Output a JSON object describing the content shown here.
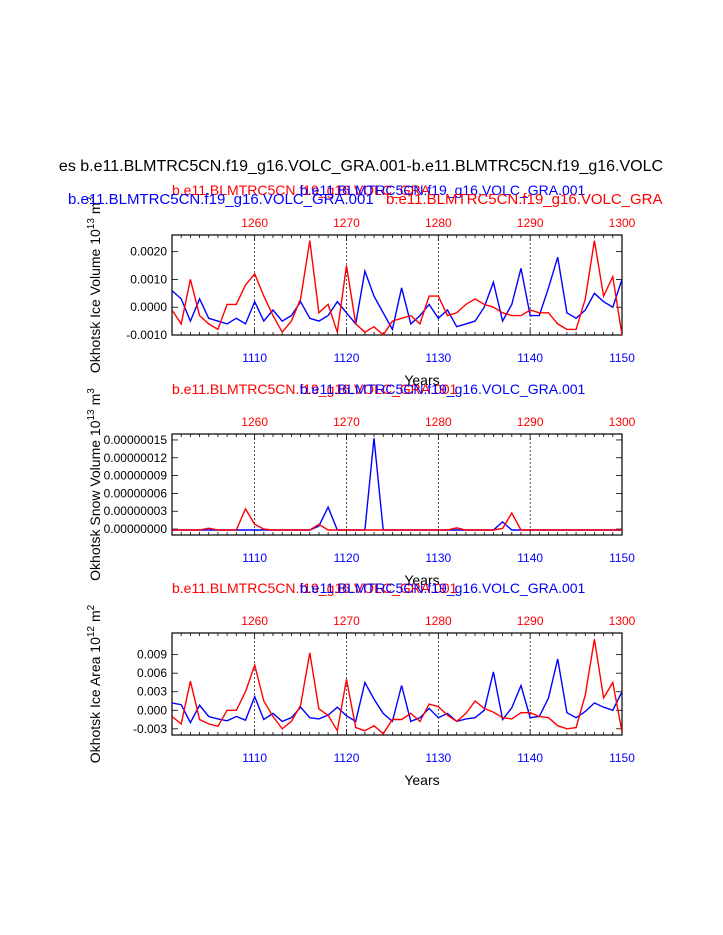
{
  "figure": {
    "title": "es b.e11.BLMTRC5CN.f19_g16.VOLC_GRA.001-b.e11.BLMTRC5CN.f19_g16.VOLC",
    "colors": {
      "case1": "#0000ff",
      "case2": "#ff0000",
      "axis": "#000000",
      "grid": "#000000"
    }
  },
  "chart_data": [
    {
      "type": "line",
      "case1_label": "b.e11.BLMTRC5CN.f19_g16.VOLC_GRA.001",
      "case2_label": "b.e11.BLMTRC5CN.f19_g16.VOLC_GRA",
      "ylabel": "Okhotsk Ice Volume 10",
      "ylabel_exp": "13",
      "ylabel_unit": "m",
      "ylabel_unit_exp": "3",
      "xlabel": "Years",
      "bottom_xlim": [
        1101,
        1150
      ],
      "top_xlim": [
        1251,
        1300
      ],
      "bottom_ticks": [
        1110,
        1120,
        1130,
        1140,
        1150
      ],
      "top_ticks": [
        1260,
        1270,
        1280,
        1290,
        1300
      ],
      "ylim": [
        -0.001,
        0.0026
      ],
      "yticks": [
        0.002,
        0.001,
        0.0,
        -0.001
      ],
      "ytick_labels": [
        "0.0020",
        "0.0010",
        "0.0000",
        "-0.0010"
      ],
      "series": [
        {
          "name": "b.e11.BLMTRC5CN.f19_g16.VOLC_GRA.001",
          "axis": "bottom",
          "values": [
            0.0006,
            0.0003,
            -0.0005,
            0.0003,
            -0.0004,
            -0.0005,
            -0.0006,
            -0.0004,
            -0.0006,
            0.0002,
            -0.0005,
            -0.0001,
            -0.0005,
            -0.0003,
            0.0002,
            -0.0004,
            -0.0005,
            -0.0003,
            0.0002,
            -0.0002,
            -0.0006,
            0.0013,
            0.0004,
            -0.0002,
            -0.0008,
            0.0007,
            -0.0006,
            -0.0003,
            0.0001,
            -0.0004,
            -0.0001,
            -0.0007,
            -0.0006,
            -0.0005,
            0.0,
            0.0009,
            -0.0005,
            0.0001,
            0.0014,
            -0.0003,
            -0.0003,
            0.0007,
            0.0018,
            -0.0002,
            -0.0004,
            -0.0001,
            0.0005,
            0.0002,
            0.0,
            0.001
          ]
        },
        {
          "name": "b.e11.BLMTRC5CN.f19_g16.VOLC_GRA",
          "axis": "top",
          "values": [
            -0.0001,
            -0.0006,
            0.001,
            -0.0003,
            -0.0006,
            -0.0008,
            0.0001,
            0.0001,
            0.0008,
            0.0012,
            0.0004,
            -0.0003,
            -0.0009,
            -0.0005,
            0.0003,
            0.0024,
            -0.0002,
            0.0001,
            -0.0009,
            0.0015,
            -0.0006,
            -0.0009,
            -0.0007,
            -0.001,
            -0.0005,
            -0.0004,
            -0.0003,
            -0.0006,
            0.0004,
            0.0004,
            -0.0003,
            -0.0002,
            0.0001,
            0.0003,
            0.0001,
            0.0,
            -0.0002,
            -0.0003,
            -0.0003,
            -0.0001,
            -0.0002,
            -0.0002,
            -0.0006,
            -0.0008,
            -0.0008,
            0.0003,
            0.0024,
            0.0004,
            0.0011,
            -0.001
          ]
        }
      ]
    },
    {
      "type": "line",
      "case1_label": "b.e11.BLMTRC5CN.f19_g16.VOLC_GRA.001",
      "case2_label": "b.e11.BLMTRC5CN.f19_g16.VOLC_GRA.001",
      "ylabel": "Okhotsk Snow Volume 10",
      "ylabel_exp": "13",
      "ylabel_unit": "m",
      "ylabel_unit_exp": "3",
      "xlabel": "Years",
      "bottom_xlim": [
        1101,
        1150
      ],
      "top_xlim": [
        1251,
        1300
      ],
      "bottom_ticks": [
        1110,
        1120,
        1130,
        1140,
        1150
      ],
      "top_ticks": [
        1260,
        1270,
        1280,
        1290,
        1300
      ],
      "ylim": [
        -1e-08,
        1.6e-07
      ],
      "yticks": [
        1.5e-07,
        1.2e-07,
        9e-08,
        6e-08,
        3e-08,
        0.0
      ],
      "ytick_labels": [
        "0.00000015",
        "0.00000012",
        "0.00000009",
        "0.00000006",
        "0.00000003",
        "0.00000000"
      ],
      "series": [
        {
          "name": "b.e11.BLMTRC5CN.f19_g16.VOLC_GRA.001",
          "axis": "bottom",
          "values": [
            -1.5e-09,
            -1.5e-09,
            -1.5e-09,
            -1.5e-09,
            -1.5e-09,
            -1.5e-09,
            -1.5e-09,
            -1.5e-09,
            -1.5e-09,
            -1.5e-09,
            -1.5e-09,
            -1.5e-09,
            -1.5e-09,
            -1.5e-09,
            -1.5e-09,
            -1.5e-09,
            5e-09,
            3.7e-08,
            -1.5e-09,
            -1.5e-09,
            -1.5e-09,
            -1.5e-09,
            1.53e-07,
            -1.5e-09,
            -1.5e-09,
            -1.5e-09,
            -1.5e-09,
            -1.5e-09,
            -1.5e-09,
            -1.5e-09,
            -1.5e-09,
            -1.5e-09,
            -1.5e-09,
            -1.5e-09,
            -1.5e-09,
            -1.5e-09,
            1.2e-08,
            -1.5e-09,
            -1.5e-09,
            -1.5e-09,
            -1.5e-09,
            -1.5e-09,
            -1.5e-09,
            -1.5e-09,
            -1.5e-09,
            -1.5e-09,
            -1.5e-09,
            -1.5e-09,
            -1.5e-09,
            -1.5e-09
          ]
        },
        {
          "name": "b.e11.BLMTRC5CN.f19_g16.VOLC_GRA.001",
          "axis": "top",
          "values": [
            -1.5e-09,
            -1.5e-09,
            -1.5e-09,
            -1.5e-09,
            1.5e-09,
            -1.5e-09,
            -1.5e-09,
            -1.5e-09,
            3.4e-08,
            8e-09,
            0.0,
            -1.5e-09,
            -1.5e-09,
            -1.5e-09,
            -1.5e-09,
            -1.5e-09,
            8e-09,
            -1.5e-09,
            -1.5e-09,
            -1.5e-09,
            -1.5e-09,
            -1.5e-09,
            -1.5e-09,
            -1.5e-09,
            -1.5e-09,
            -1.5e-09,
            -1.5e-09,
            -1.5e-09,
            -1.5e-09,
            -1.5e-09,
            -1.5e-09,
            2e-09,
            -1.5e-09,
            -1.5e-09,
            -1.5e-09,
            -1.5e-09,
            1e-09,
            2.7e-08,
            -1.5e-09,
            -1.5e-09,
            -1.5e-09,
            -1.5e-09,
            -1.5e-09,
            -1.5e-09,
            -1.5e-09,
            -1.5e-09,
            -1.5e-09,
            -1.5e-09,
            -1.5e-09,
            -1.5e-09
          ]
        }
      ]
    },
    {
      "type": "line",
      "case1_label": "b.e11.BLMTRC5CN.f19_g16.VOLC_GRA.001",
      "case2_label": "b.e11.BLMTRC5CN.f19_g16.VOLC_GRA.001",
      "ylabel": "Okhotsk Ice Area 10",
      "ylabel_exp": "12",
      "ylabel_unit": "m",
      "ylabel_unit_exp": "2",
      "xlabel": "Years",
      "bottom_xlim": [
        1101,
        1150
      ],
      "top_xlim": [
        1251,
        1300
      ],
      "bottom_ticks": [
        1110,
        1120,
        1130,
        1140,
        1150
      ],
      "top_ticks": [
        1260,
        1270,
        1280,
        1290,
        1300
      ],
      "ylim": [
        -0.004,
        0.0125
      ],
      "yticks": [
        0.009,
        0.006,
        0.003,
        0.0,
        -0.003
      ],
      "ytick_labels": [
        "0.009",
        "0.006",
        "0.003",
        "0.000",
        "-0.003"
      ],
      "series": [
        {
          "name": "b.e11.BLMTRC5CN.f19_g16.VOLC_GRA.001",
          "axis": "bottom",
          "values": [
            0.0012,
            0.0009,
            -0.002,
            0.0008,
            -0.001,
            -0.0014,
            -0.0017,
            -0.001,
            -0.0016,
            0.0022,
            -0.0015,
            -0.0005,
            -0.0018,
            -0.0012,
            0.0005,
            -0.0012,
            -0.0014,
            -0.0008,
            0.0005,
            -0.0009,
            -0.0018,
            0.0045,
            0.0018,
            -0.0005,
            -0.0018,
            0.004,
            -0.0018,
            -0.0012,
            0.0003,
            -0.0012,
            -0.0005,
            -0.0018,
            -0.0014,
            -0.0012,
            0.0,
            0.0062,
            -0.0015,
            0.0004,
            0.004,
            -0.0012,
            -0.001,
            0.002,
            0.0083,
            -0.0004,
            -0.0012,
            -0.0002,
            0.0012,
            0.0005,
            0.0,
            0.003
          ]
        },
        {
          "name": "b.e11.BLMTRC5CN.f19_g16.VOLC_GRA.001",
          "axis": "top",
          "values": [
            -0.001,
            -0.0022,
            0.0047,
            -0.0015,
            -0.0022,
            -0.0026,
            0.0,
            0.0,
            0.003,
            0.0073,
            0.0015,
            -0.001,
            -0.003,
            -0.0018,
            0.0008,
            0.0093,
            0.0002,
            -0.0008,
            -0.0033,
            0.005,
            -0.0028,
            -0.0033,
            -0.0025,
            -0.0038,
            -0.0015,
            -0.0015,
            -0.0005,
            -0.0018,
            0.001,
            0.0006,
            -0.0008,
            -0.0018,
            -0.0005,
            0.0015,
            0.0003,
            -0.0003,
            -0.0012,
            -0.0014,
            -0.0004,
            -0.0004,
            -0.001,
            -0.0012,
            -0.0025,
            -0.003,
            -0.0028,
            0.0025,
            0.0115,
            0.002,
            0.0045,
            -0.0035
          ]
        }
      ]
    }
  ]
}
